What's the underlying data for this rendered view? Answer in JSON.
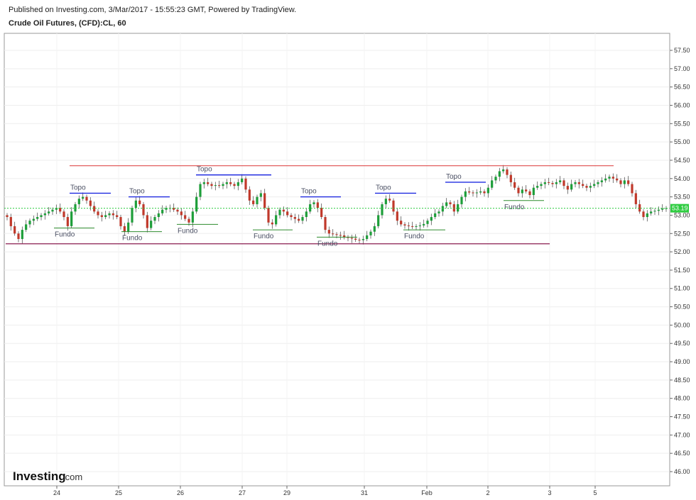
{
  "header": {
    "published": "Published on Investing.com, 3/Mar/2017 - 15:55:23 GMT, Powered by TradingView.",
    "symbol": "Crude Oil Futures, (CFD):CL, 60"
  },
  "logo": {
    "brand": "Investing",
    "suffix": ".com"
  },
  "colors": {
    "up": "#1e9e3a",
    "down": "#c0392b",
    "resistance": "#e04b4b",
    "support": "#8a1c4f",
    "topo": "#1f2ae0",
    "fundo": "#2e8b2e",
    "last_line": "#2ecc40",
    "grid": "#eeeeee",
    "border": "#999999"
  },
  "chart_data": {
    "type": "candlestick",
    "ylim": [
      45.75,
      57.75
    ],
    "y_ticks": [
      "57.50",
      "57.00",
      "56.50",
      "56.00",
      "55.50",
      "55.00",
      "54.50",
      "54.00",
      "53.50",
      "53.00",
      "52.50",
      "52.00",
      "51.50",
      "51.00",
      "50.50",
      "50.00",
      "49.50",
      "49.00",
      "48.50",
      "48.00",
      "47.50",
      "47.00",
      "46.50",
      "46.00"
    ],
    "x_labels": [
      "24",
      "25",
      "26",
      "27",
      "29",
      "31",
      "Feb",
      "2",
      "3",
      "5"
    ],
    "last_price": "53.19",
    "closes": [
      52.95,
      52.7,
      52.5,
      52.35,
      52.6,
      52.75,
      52.85,
      52.9,
      52.95,
      53.0,
      53.05,
      53.1,
      53.15,
      53.2,
      53.1,
      52.95,
      52.7,
      53.1,
      53.3,
      53.45,
      53.5,
      53.4,
      53.25,
      53.1,
      53.0,
      52.95,
      53.0,
      53.05,
      53.0,
      52.95,
      52.7,
      52.55,
      52.8,
      53.2,
      53.4,
      53.3,
      53.0,
      52.65,
      52.85,
      52.95,
      53.05,
      53.15,
      53.2,
      53.2,
      53.15,
      53.1,
      53.0,
      52.9,
      52.8,
      53.1,
      53.5,
      53.85,
      53.9,
      53.85,
      53.8,
      53.82,
      53.8,
      53.85,
      53.9,
      53.85,
      53.8,
      53.9,
      54.0,
      53.7,
      53.4,
      53.3,
      53.5,
      53.6,
      53.2,
      52.8,
      52.75,
      53.0,
      53.15,
      53.1,
      53.0,
      52.95,
      52.9,
      52.85,
      52.95,
      53.1,
      53.3,
      53.35,
      53.2,
      52.95,
      52.6,
      52.5,
      52.48,
      52.46,
      52.45,
      52.4,
      52.38,
      52.36,
      52.33,
      52.32,
      52.35,
      52.45,
      52.55,
      52.7,
      53.0,
      53.3,
      53.45,
      53.4,
      53.1,
      52.85,
      52.75,
      52.72,
      52.7,
      52.68,
      52.7,
      52.72,
      52.76,
      52.85,
      52.95,
      53.05,
      53.1,
      53.25,
      53.35,
      53.3,
      53.1,
      53.3,
      53.5,
      53.65,
      53.62,
      53.6,
      53.62,
      53.65,
      53.6,
      53.75,
      53.95,
      54.05,
      54.2,
      54.25,
      54.1,
      53.9,
      53.75,
      53.6,
      53.7,
      53.65,
      53.55,
      53.75,
      53.8,
      53.85,
      53.9,
      53.88,
      53.85,
      53.9,
      53.95,
      53.8,
      53.7,
      53.85,
      53.9,
      53.85,
      53.8,
      53.75,
      53.8,
      53.85,
      53.9,
      53.95,
      54.0,
      54.05,
      54.0,
      53.95,
      53.85,
      53.95,
      53.85,
      53.6,
      53.3,
      53.1,
      52.95,
      53.05,
      53.1,
      53.12,
      53.15,
      53.18,
      53.19
    ]
  },
  "annotations": {
    "resistance": {
      "label": "",
      "price": 54.35
    },
    "support": {
      "label": "",
      "price": 52.22
    },
    "topo": [
      {
        "label": "Topo",
        "price": 53.6
      },
      {
        "label": "Topo",
        "price": 53.5
      },
      {
        "label": "Topo",
        "price": 54.1
      },
      {
        "label": "Topo",
        "price": 53.5
      },
      {
        "label": "Topo",
        "price": 53.6
      },
      {
        "label": "Topo",
        "price": 53.9
      }
    ],
    "fundo": [
      {
        "label": "Fundo",
        "price": 52.65
      },
      {
        "label": "Fundo",
        "price": 52.55
      },
      {
        "label": "Fundo",
        "price": 52.75
      },
      {
        "label": "Fundo",
        "price": 52.6
      },
      {
        "label": "Fundo",
        "price": 52.4
      },
      {
        "label": "Fundo",
        "price": 52.6
      },
      {
        "label": "Fundo",
        "price": 53.4
      }
    ]
  }
}
